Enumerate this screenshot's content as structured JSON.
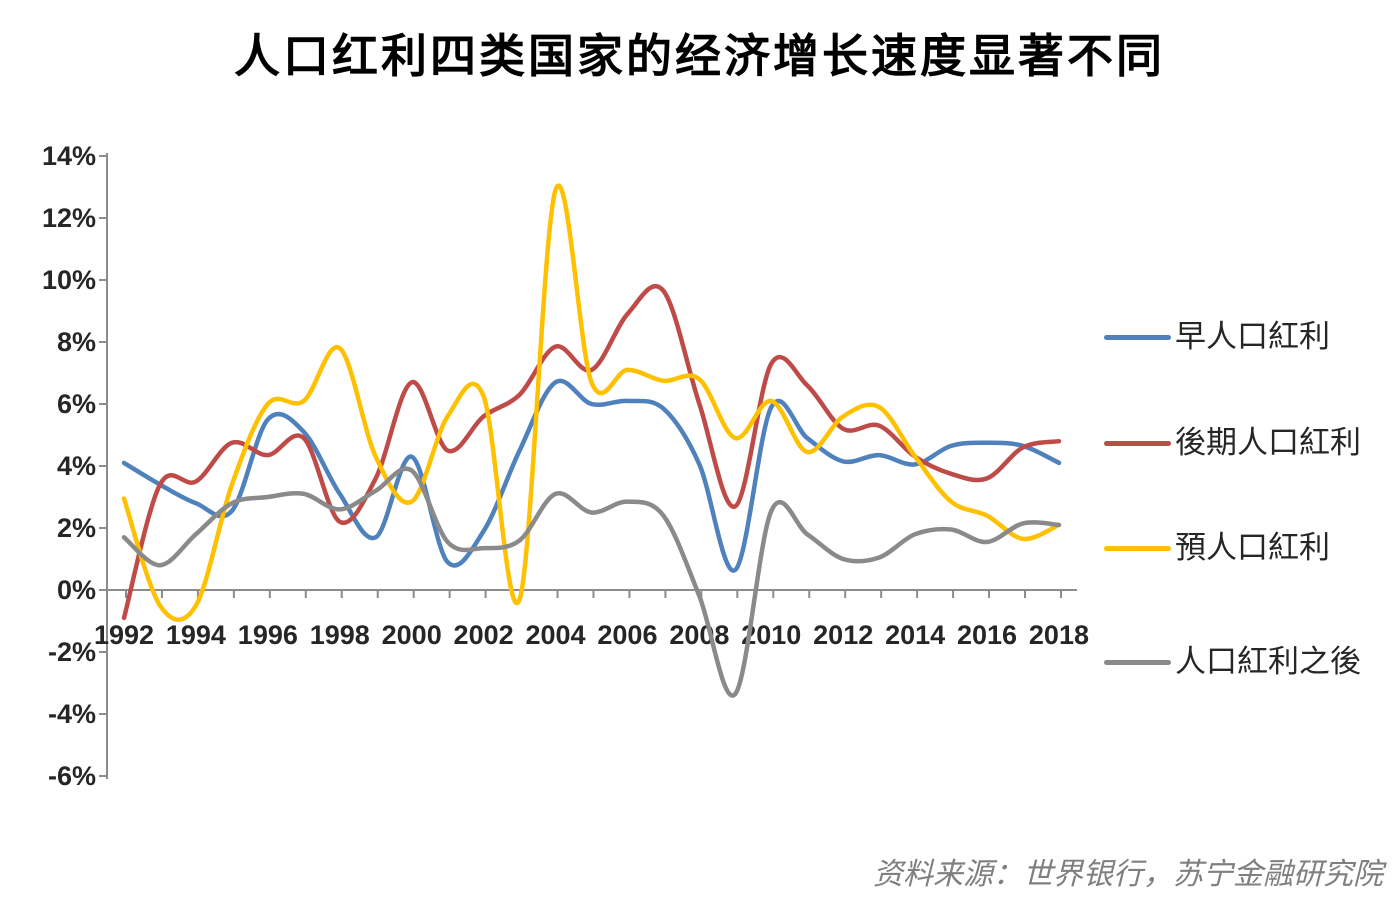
{
  "title": "人口红利四类国家的经济增长速度显著不同",
  "source": "资料来源：世界银行，苏宁金融研究院",
  "colors": {
    "early": "#4F81BD",
    "late": "#BE4B48",
    "pre": "#FFC000",
    "post": "#8A8A8A",
    "axis": "#8C8C8C",
    "tick_label": "#262626",
    "title_text": "#000000",
    "source_text": "#7F7F7F"
  },
  "chart_data": {
    "type": "line",
    "title": "人口红利四类国家的经济增长速度显著不同",
    "smooth": true,
    "grid": false,
    "legend_position": "right",
    "xlabel": "",
    "ylabel": "",
    "ylim": [
      -6,
      14
    ],
    "x": [
      1992,
      1993,
      1994,
      1995,
      1996,
      1997,
      1998,
      1999,
      2000,
      2001,
      2002,
      2003,
      2004,
      2005,
      2006,
      2007,
      2008,
      2009,
      2010,
      2011,
      2012,
      2013,
      2014,
      2015,
      2016,
      2017,
      2018
    ],
    "x_tick_labels": [
      "1992",
      "1994",
      "1996",
      "1998",
      "2000",
      "2002",
      "2004",
      "2006",
      "2008",
      "2010",
      "2012",
      "2014",
      "2016",
      "2018"
    ],
    "y_ticks": [
      {
        "label": "14%",
        "value": 14
      },
      {
        "label": "12%",
        "value": 12
      },
      {
        "label": "10%",
        "value": 10
      },
      {
        "label": "8%",
        "value": 8
      },
      {
        "label": "6%",
        "value": 6
      },
      {
        "label": "4%",
        "value": 4
      },
      {
        "label": "2%",
        "value": 2
      },
      {
        "label": "0%",
        "value": 0
      },
      {
        "label": "-2%",
        "value": -2
      },
      {
        "label": "-4%",
        "value": -4
      },
      {
        "label": "-6%",
        "value": -6
      }
    ],
    "series": [
      {
        "name": "早人口紅利",
        "color": "#4F81BD",
        "values": [
          4.1,
          3.4,
          2.8,
          2.55,
          5.5,
          5.1,
          3.1,
          1.7,
          4.3,
          0.9,
          1.9,
          4.5,
          6.7,
          6.0,
          6.1,
          5.85,
          4.05,
          0.65,
          5.9,
          4.9,
          4.15,
          4.35,
          4.05,
          4.65,
          4.75,
          4.65,
          4.1
        ]
      },
      {
        "name": "後期人口紅利",
        "color": "#BE4B48",
        "values": [
          -0.9,
          3.4,
          3.5,
          4.75,
          4.35,
          4.9,
          2.2,
          3.6,
          6.7,
          4.5,
          5.6,
          6.3,
          7.85,
          7.1,
          8.9,
          9.65,
          6.0,
          2.7,
          7.3,
          6.6,
          5.2,
          5.3,
          4.3,
          3.75,
          3.6,
          4.6,
          4.8
        ]
      },
      {
        "name": "預人口紅利",
        "color": "#FFC000",
        "values": [
          2.95,
          -0.5,
          -0.5,
          3.4,
          6.0,
          6.1,
          7.8,
          4.3,
          2.85,
          5.6,
          6.25,
          -0.3,
          12.9,
          6.7,
          7.1,
          6.75,
          6.8,
          4.9,
          6.1,
          4.45,
          5.6,
          5.9,
          4.3,
          2.85,
          2.4,
          1.65,
          2.1
        ]
      },
      {
        "name": "人口紅利之後",
        "color": "#8A8A8A",
        "values": [
          1.7,
          0.8,
          1.8,
          2.8,
          3.0,
          3.1,
          2.6,
          3.2,
          3.85,
          1.55,
          1.35,
          1.6,
          3.1,
          2.5,
          2.85,
          2.4,
          -0.2,
          -3.35,
          2.55,
          1.8,
          1.0,
          1.05,
          1.8,
          1.95,
          1.55,
          2.15,
          2.1
        ]
      }
    ]
  }
}
